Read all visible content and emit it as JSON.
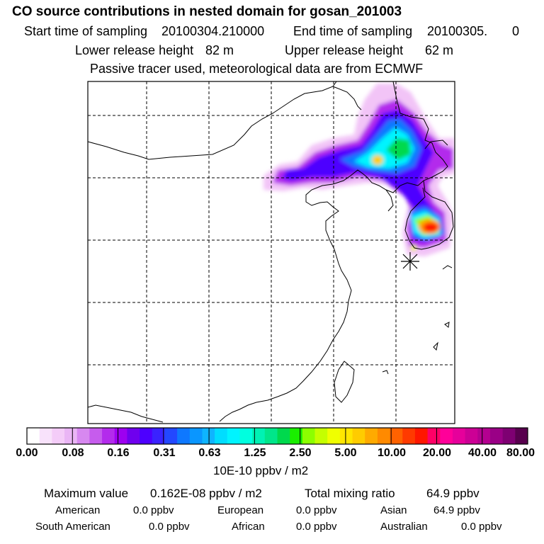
{
  "header": {
    "title": "CO  source contributions in nested domain for gosan_201003",
    "start_label": "Start time of sampling",
    "start_value": "20100304.210000",
    "end_label": "End time of sampling",
    "end_value": "20100305.",
    "end_suffix": "0",
    "lower_label": "Lower release height",
    "lower_value": "82 m",
    "upper_label": "Upper release height",
    "upper_value": "62 m",
    "note": "Passive tracer used, meteorological data are from ECMWF"
  },
  "chart_data": {
    "type": "heatmap",
    "title": "CO  source contributions in nested domain for gosan_201003",
    "map_region": "East Asia (China, Korea, Japan, Taiwan)",
    "receptor": "gosan",
    "colorbar": {
      "unit": "10E-10 ppbv / m2",
      "tick_labels": [
        "0.00",
        "0.08",
        "0.16",
        "0.31",
        "0.63",
        "1.25",
        "2.50",
        "5.00",
        "10.00",
        "20.00",
        "40.00",
        "80.00"
      ],
      "tick_values": [
        0.0,
        0.08,
        0.16,
        0.31,
        0.63,
        1.25,
        2.5,
        5.0,
        10.0,
        20.0,
        40.0,
        80.0
      ],
      "colors": [
        "#ffffff",
        "#f8e2fb",
        "#f4ccf8",
        "#eab5f5",
        "#d788f0",
        "#c65ced",
        "#b32bec",
        "#9d00f0",
        "#6f00ee",
        "#4d00ff",
        "#3a22ff",
        "#2348ff",
        "#0e78ff",
        "#0a96ff",
        "#0fb4ff",
        "#00ddff",
        "#00f4ff",
        "#00ffdf",
        "#00f2b4",
        "#00e68a",
        "#00d94d",
        "#1aee00",
        "#8cff00",
        "#c5ff00",
        "#f0ff00",
        "#ffe600",
        "#ffcc00",
        "#ffaa00",
        "#ff8a00",
        "#ff6200",
        "#ff3a00",
        "#ff1600",
        "#ff0066",
        "#ff0099",
        "#e6009b",
        "#cc0095",
        "#b40090",
        "#9a0086",
        "#7e0072",
        "#58004e"
      ]
    },
    "hotspots": [
      {
        "region": "Korea (south)",
        "level": "10.00-40.00"
      },
      {
        "region": "Bohai / Liaoning",
        "level": "1.25-10.00"
      },
      {
        "region": "Manchuria",
        "level": "0.63-2.50"
      },
      {
        "region": "North China plain",
        "level": "0.08-0.63"
      }
    ],
    "grid": true
  },
  "summary": {
    "max_label": "Maximum value",
    "max_value": "0.162E-08 ppbv / m2",
    "total_label": "Total mixing ratio",
    "total_value": "64.9 ppbv",
    "regions": [
      {
        "name": "American",
        "value": "0.0 ppbv"
      },
      {
        "name": "European",
        "value": "0.0 ppbv"
      },
      {
        "name": "Asian",
        "value": "64.9 ppbv"
      },
      {
        "name": "South American",
        "value": "0.0 ppbv"
      },
      {
        "name": "African",
        "value": "0.0 ppbv"
      },
      {
        "name": "Australian",
        "value": "0.0 ppbv"
      }
    ]
  }
}
